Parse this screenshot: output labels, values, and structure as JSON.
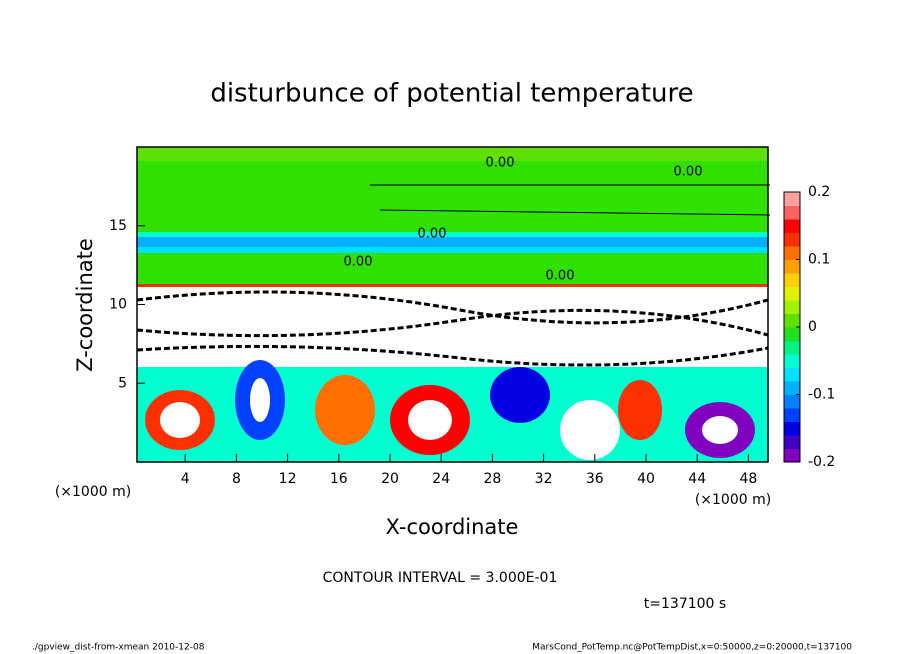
{
  "chart_data": {
    "type": "contour",
    "title": "disturbunce of potential temperature",
    "xlabel": "X-coordinate",
    "ylabel": "Z-coordinate",
    "xunit": "(×1000 m)",
    "yunit": "(×1000 m)",
    "xlim": [
      0,
      50
    ],
    "xticks": [
      4,
      8,
      12,
      16,
      20,
      24,
      28,
      32,
      36,
      40,
      44,
      48
    ],
    "ylim": [
      0,
      20
    ],
    "yticks": [
      5,
      10,
      15
    ],
    "colorbar": {
      "lim": [
        -0.2,
        0.2
      ],
      "ticks": [
        0.2,
        0.1,
        0,
        -0.1,
        -0.2
      ],
      "colors": [
        "#8000c0",
        "#4000c0",
        "#0000e0",
        "#0040ff",
        "#0080ff",
        "#00b0ff",
        "#00e0ff",
        "#00ffd0",
        "#00f080",
        "#20e020",
        "#60e000",
        "#a0f000",
        "#e0f000",
        "#ffd000",
        "#ffa000",
        "#ff7000",
        "#ff3000",
        "#ff0000",
        "#ff6060",
        "#ffa0a0"
      ]
    },
    "contour_labels": [
      "0.00",
      "0.00",
      "0.00",
      "0.00",
      "0.00"
    ],
    "contour_interval": "CONTOUR INTERVAL = 3.000E-01",
    "time_label": "t=137100 s",
    "footer_left": "./gpview_dist-from-xmean  2010-12-08",
    "footer_right": "MarsCond_PotTemp.nc@PotTempDist,x=0:50000,z=0:20000,t=137100"
  }
}
